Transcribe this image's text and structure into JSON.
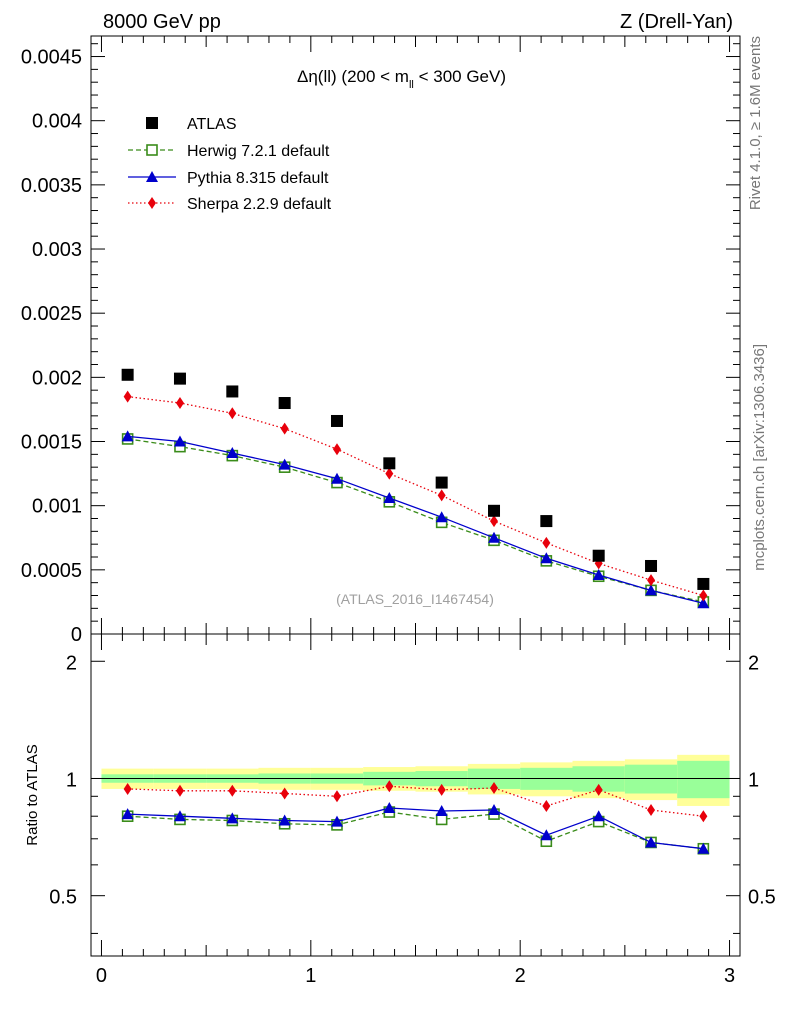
{
  "header": {
    "left": "8000 GeV pp",
    "right": "Z (Drell-Yan)"
  },
  "side_labels": {
    "rivet": "Rivet 4.1.0, ≥ 1.6M events",
    "source": "mcplots.cern.ch [arXiv:1306.3436]"
  },
  "chart_data": [
    {
      "type": "scatter",
      "title": "Δη(ll) (200 < m_ll < 300 GeV)",
      "title_parts": {
        "main": "Δη(ll) (200 < m",
        "sub": "ll",
        "tail": " < 300 GeV)"
      },
      "watermark": "(ATLAS_2016_I1467454)",
      "xlabel": "",
      "ylabel": "",
      "xlim": [
        -0.05,
        3.05
      ],
      "ylim": [
        0,
        0.00466
      ],
      "yticks": [
        0,
        0.0005,
        0.001,
        0.0015,
        0.002,
        0.0025,
        0.003,
        0.0035,
        0.004,
        0.0045
      ],
      "ytick_labels": [
        "0",
        "0.0005",
        "0.001",
        "0.0015",
        "0.002",
        "0.0025",
        "0.003",
        "0.0035",
        "0.004",
        "0.0045"
      ],
      "legend_position": "top-left",
      "x": [
        0.125,
        0.375,
        0.625,
        0.875,
        1.125,
        1.375,
        1.625,
        1.875,
        2.125,
        2.375,
        2.625,
        2.875
      ],
      "series": [
        {
          "name": "ATLAS",
          "color": "#000000",
          "marker": "square",
          "values": [
            0.00202,
            0.00199,
            0.00189,
            0.0018,
            0.00166,
            0.00133,
            0.00118,
            0.00096,
            0.00088,
            0.00061,
            0.00053,
            0.00039
          ]
        },
        {
          "name": "Herwig 7.2.1 default",
          "color": "#3a8c1a",
          "marker": "open-square",
          "line": "dashed",
          "values": [
            0.00152,
            0.00146,
            0.00139,
            0.0013,
            0.00118,
            0.00103,
            0.00087,
            0.00073,
            0.00057,
            0.00045,
            0.00034,
            0.00025
          ]
        },
        {
          "name": "Pythia 8.315 default",
          "color": "#0000cc",
          "marker": "triangle",
          "line": "solid",
          "values": [
            0.00154,
            0.0015,
            0.00141,
            0.00132,
            0.00121,
            0.00106,
            0.00091,
            0.00075,
            0.00059,
            0.00046,
            0.00034,
            0.00024
          ]
        },
        {
          "name": "Sherpa 2.2.9 default",
          "color": "#e8000b",
          "marker": "diamond",
          "line": "dotted",
          "values": [
            0.00185,
            0.0018,
            0.00172,
            0.0016,
            0.00144,
            0.00125,
            0.00108,
            0.00088,
            0.00071,
            0.00055,
            0.00042,
            0.0003
          ]
        }
      ]
    },
    {
      "type": "scatter",
      "title": "",
      "xlabel": "",
      "ylabel": "Ratio to ATLAS",
      "xlim": [
        -0.05,
        3.05
      ],
      "ylim": [
        0.35,
        2.35
      ],
      "yticks": [
        0.5,
        1,
        2
      ],
      "ytick_labels": [
        "0.5",
        "1",
        "2"
      ],
      "xticks": [
        0,
        1,
        2,
        3
      ],
      "xtick_labels": [
        "0",
        "1",
        "2",
        "3"
      ],
      "reference_line": 1,
      "bin_edges": [
        0,
        0.25,
        0.5,
        0.75,
        1,
        1.25,
        1.5,
        1.75,
        2,
        2.25,
        2.5,
        2.75,
        3
      ],
      "band_colors": {
        "total": "#ffff99",
        "stat": "#99ff99"
      },
      "uncertainty_total": [
        0.06,
        0.06,
        0.06,
        0.065,
        0.065,
        0.07,
        0.075,
        0.09,
        0.1,
        0.11,
        0.12,
        0.15
      ],
      "uncertainty_stat": [
        0.025,
        0.025,
        0.025,
        0.03,
        0.03,
        0.04,
        0.045,
        0.06,
        0.065,
        0.075,
        0.085,
        0.11
      ],
      "x": [
        0.125,
        0.375,
        0.625,
        0.875,
        1.125,
        1.375,
        1.625,
        1.875,
        2.125,
        2.375,
        2.625,
        2.875
      ],
      "series": [
        {
          "name": "Herwig 7.2.1 default",
          "color": "#3a8c1a",
          "marker": "open-square",
          "line": "dashed",
          "values": [
            0.8,
            0.785,
            0.78,
            0.765,
            0.76,
            0.82,
            0.785,
            0.81,
            0.69,
            0.775,
            0.685,
            0.66
          ]
        },
        {
          "name": "Pythia 8.315 default",
          "color": "#0000cc",
          "marker": "triangle",
          "line": "solid",
          "values": [
            0.81,
            0.8,
            0.79,
            0.78,
            0.775,
            0.84,
            0.825,
            0.83,
            0.715,
            0.8,
            0.685,
            0.66
          ]
        },
        {
          "name": "Sherpa 2.2.9 default",
          "color": "#e8000b",
          "marker": "diamond",
          "line": "dotted",
          "values": [
            0.94,
            0.93,
            0.93,
            0.915,
            0.9,
            0.955,
            0.935,
            0.945,
            0.85,
            0.935,
            0.83,
            0.8
          ]
        }
      ]
    }
  ]
}
